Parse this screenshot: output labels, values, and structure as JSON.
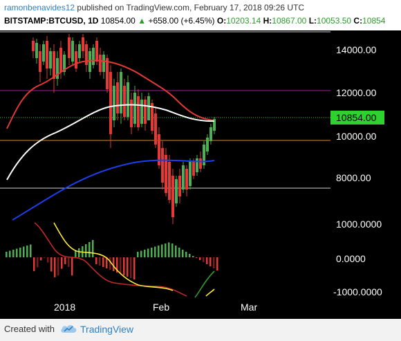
{
  "header": {
    "author": "ramonbenavides12",
    "published_text": "published on TradingView.com, February 17, 2018 09:26 UTC",
    "symbol": "BITSTAMP:BTCUSD, 1D",
    "last": "10854.00",
    "change_icon": "up-triangle-icon",
    "change": "+658.00 (+6.45%)",
    "o_label": "O:",
    "o_value": "10203.14",
    "h_label": "H:",
    "h_value": "10867.00",
    "l_label": "L:",
    "l_value": "10053.50",
    "c_label": "C:",
    "c_value": "10854"
  },
  "price_axis": {
    "ticks": [
      "14000.00",
      "12000.00",
      "10000.00",
      "8000.00"
    ],
    "last_price_badge": "10854.00"
  },
  "indicator_axis": {
    "ticks": [
      "1000.0000",
      "0.0000",
      "-1000.0000"
    ]
  },
  "time_axis": {
    "labels": [
      "2018",
      "Feb",
      "Mar"
    ]
  },
  "footer": {
    "created_with": "Created with",
    "brand": "TradingView",
    "brand_icon": "tradingview-cloud-icon"
  },
  "colors": {
    "background": "#000000",
    "up_candle": "#4caf50",
    "down_candle": "#e53935",
    "ema_red": "#e53935",
    "ema_white": "#ffffff",
    "ema_blue": "#1e3ff0",
    "level_purple": "#a020a0",
    "level_orange": "#e08a2a",
    "level_gray": "#cfcfcf",
    "last_badge": "#2ed12e"
  }
}
